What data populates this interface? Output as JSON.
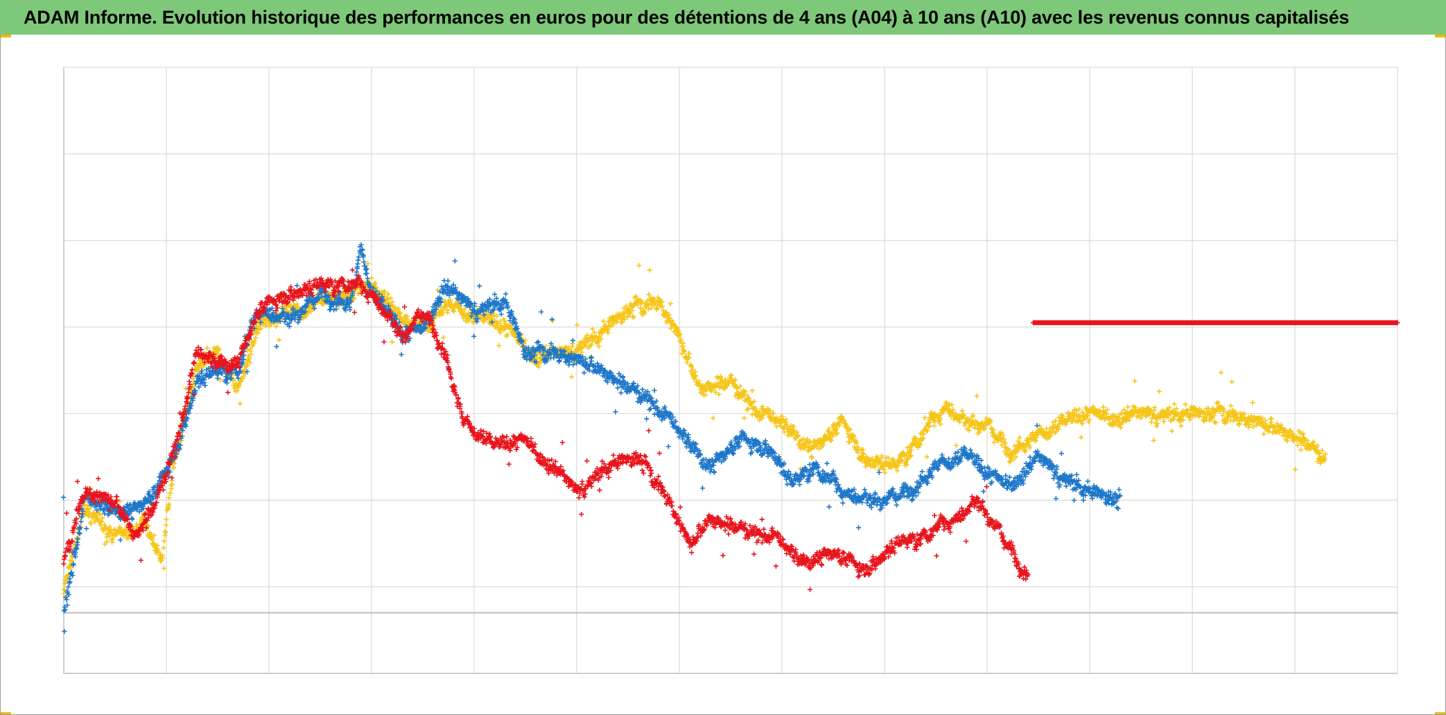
{
  "title": "ADAM Informe. Evolution historique des performances en euros pour des détentions de 4 ans (A04) à 10 ans (A10) avec les revenus connus capitalisés",
  "colors": {
    "title_bar": "#7ec87a",
    "grid": "#d9d9d9",
    "axis": "#bfbfbf",
    "corner_accent": "#f2b705"
  },
  "chart_data": {
    "type": "scatter",
    "title": "ADAM Informe. Evolution historique des performances en euros pour des détentions de 4 ans (A04) à 10 ans (A10) avec les revenus connus capitalisés",
    "xlabel": "",
    "ylabel": "",
    "xlim": [
      0,
      13
    ],
    "ylim": [
      -0.7,
      6.3
    ],
    "grid": true,
    "legend": "none",
    "marker": "+",
    "reference_line_y": 0,
    "series": [
      {
        "name": "yellow",
        "color": "#f5c518",
        "anchors": [
          [
            0.0,
            0.2
          ],
          [
            0.2,
            1.2
          ],
          [
            0.5,
            0.9
          ],
          [
            0.8,
            1.0
          ],
          [
            0.95,
            0.6
          ],
          [
            1.1,
            1.9
          ],
          [
            1.3,
            2.8
          ],
          [
            1.5,
            3.0
          ],
          [
            1.7,
            2.6
          ],
          [
            1.9,
            3.3
          ],
          [
            2.2,
            3.5
          ],
          [
            2.5,
            3.6
          ],
          [
            2.8,
            3.7
          ],
          [
            3.0,
            3.8
          ],
          [
            3.3,
            3.4
          ],
          [
            3.5,
            3.3
          ],
          [
            3.7,
            3.6
          ],
          [
            4.0,
            3.4
          ],
          [
            4.3,
            3.3
          ],
          [
            4.6,
            3.0
          ],
          [
            4.9,
            3.0
          ],
          [
            5.2,
            3.2
          ],
          [
            5.5,
            3.5
          ],
          [
            5.8,
            3.6
          ],
          [
            6.0,
            3.2
          ],
          [
            6.2,
            2.6
          ],
          [
            6.5,
            2.7
          ],
          [
            6.8,
            2.3
          ],
          [
            7.0,
            2.2
          ],
          [
            7.3,
            1.9
          ],
          [
            7.6,
            2.2
          ],
          [
            7.8,
            1.8
          ],
          [
            8.1,
            1.7
          ],
          [
            8.4,
            2.1
          ],
          [
            8.6,
            2.4
          ],
          [
            8.8,
            2.2
          ],
          [
            9.0,
            2.2
          ],
          [
            9.2,
            1.9
          ],
          [
            9.6,
            2.1
          ],
          [
            10.0,
            2.3
          ],
          [
            10.4,
            2.3
          ],
          [
            10.8,
            2.3
          ],
          [
            11.3,
            2.3
          ],
          [
            11.7,
            2.2
          ],
          [
            12.1,
            2.0
          ],
          [
            12.3,
            1.8
          ]
        ],
        "noise": 0.11
      },
      {
        "name": "blue",
        "color": "#1f77c9",
        "anchors": [
          [
            0.0,
            0.0
          ],
          [
            0.2,
            1.3
          ],
          [
            0.5,
            1.2
          ],
          [
            0.7,
            1.2
          ],
          [
            0.9,
            1.4
          ],
          [
            1.1,
            1.9
          ],
          [
            1.3,
            2.7
          ],
          [
            1.5,
            2.8
          ],
          [
            1.7,
            2.8
          ],
          [
            1.9,
            3.5
          ],
          [
            2.2,
            3.4
          ],
          [
            2.5,
            3.7
          ],
          [
            2.8,
            3.6
          ],
          [
            2.9,
            4.2
          ],
          [
            3.0,
            3.7
          ],
          [
            3.3,
            3.2
          ],
          [
            3.5,
            3.3
          ],
          [
            3.7,
            3.8
          ],
          [
            4.0,
            3.5
          ],
          [
            4.3,
            3.6
          ],
          [
            4.5,
            3.0
          ],
          [
            4.8,
            3.0
          ],
          [
            5.1,
            2.9
          ],
          [
            5.4,
            2.7
          ],
          [
            5.7,
            2.5
          ],
          [
            6.0,
            2.1
          ],
          [
            6.3,
            1.7
          ],
          [
            6.6,
            2.0
          ],
          [
            6.9,
            1.9
          ],
          [
            7.1,
            1.5
          ],
          [
            7.3,
            1.7
          ],
          [
            7.6,
            1.4
          ],
          [
            7.9,
            1.3
          ],
          [
            8.2,
            1.4
          ],
          [
            8.5,
            1.7
          ],
          [
            8.8,
            1.8
          ],
          [
            9.0,
            1.6
          ],
          [
            9.2,
            1.5
          ],
          [
            9.5,
            1.8
          ],
          [
            9.7,
            1.6
          ],
          [
            10.0,
            1.4
          ],
          [
            10.3,
            1.3
          ]
        ],
        "noise": 0.11
      },
      {
        "name": "red",
        "color": "#e8141c",
        "anchors": [
          [
            0.0,
            0.6
          ],
          [
            0.2,
            1.4
          ],
          [
            0.5,
            1.3
          ],
          [
            0.7,
            0.9
          ],
          [
            0.9,
            1.3
          ],
          [
            1.1,
            2.0
          ],
          [
            1.3,
            3.0
          ],
          [
            1.5,
            2.9
          ],
          [
            1.7,
            2.9
          ],
          [
            1.9,
            3.5
          ],
          [
            2.2,
            3.7
          ],
          [
            2.5,
            3.8
          ],
          [
            2.8,
            3.8
          ],
          [
            3.0,
            3.7
          ],
          [
            3.3,
            3.2
          ],
          [
            3.5,
            3.5
          ],
          [
            3.7,
            3.1
          ],
          [
            3.9,
            2.2
          ],
          [
            4.2,
            1.9
          ],
          [
            4.5,
            2.0
          ],
          [
            4.7,
            1.8
          ],
          [
            5.0,
            1.4
          ],
          [
            5.3,
            1.7
          ],
          [
            5.6,
            1.8
          ],
          [
            5.9,
            1.3
          ],
          [
            6.1,
            0.8
          ],
          [
            6.3,
            1.1
          ],
          [
            6.6,
            1.0
          ],
          [
            6.9,
            0.9
          ],
          [
            7.2,
            0.6
          ],
          [
            7.5,
            0.7
          ],
          [
            7.8,
            0.5
          ],
          [
            8.1,
            0.8
          ],
          [
            8.4,
            0.9
          ],
          [
            8.7,
            1.1
          ],
          [
            8.9,
            1.3
          ],
          [
            9.1,
            1.0
          ],
          [
            9.3,
            0.6
          ],
          [
            9.4,
            0.5
          ]
        ],
        "noise": 0.1
      },
      {
        "name": "red-constant",
        "color": "#e8141c",
        "x_start": 9.45,
        "x_end": 13.0,
        "y": 3.35,
        "noise": 0.0
      }
    ]
  }
}
